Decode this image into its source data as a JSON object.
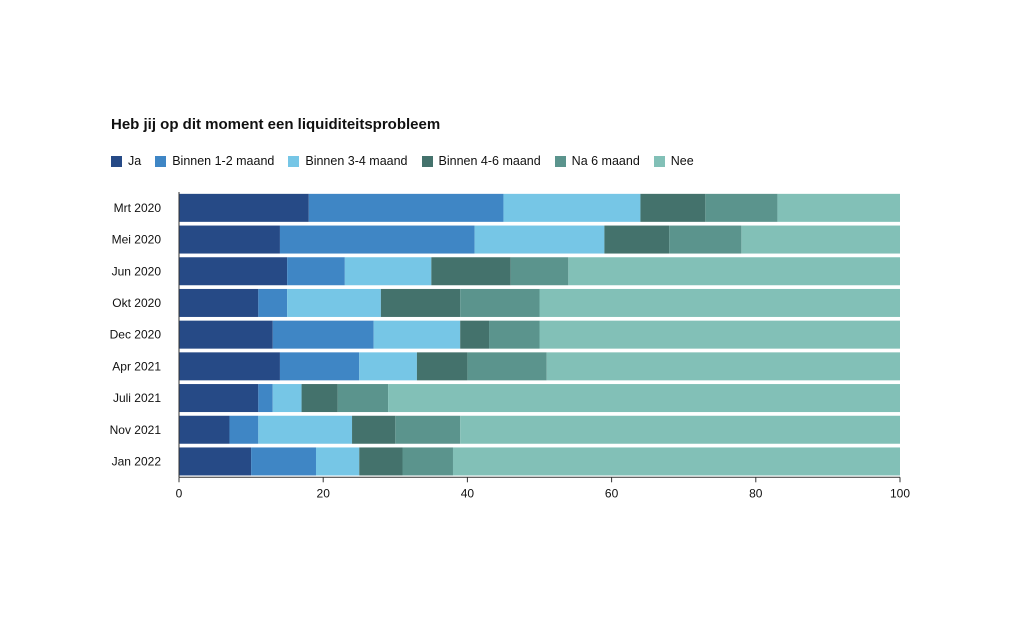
{
  "chart_data": {
    "type": "bar",
    "orientation": "horizontal",
    "stacked": true,
    "title": "Heb jij op dit moment een liquiditeitsprobleem",
    "categories": [
      "Mrt 2020",
      "Mei 2020",
      "Jun 2020",
      "Okt 2020",
      "Dec 2020",
      "Apr 2021",
      "Juli 2021",
      "Nov 2021",
      "Jan 2022"
    ],
    "series": [
      {
        "name": "Ja",
        "color": "#264a86",
        "values": [
          18,
          14,
          15,
          11,
          13,
          14,
          11,
          7,
          10
        ]
      },
      {
        "name": "Binnen 1-2 maand",
        "color": "#3f86c5",
        "values": [
          27,
          27,
          8,
          4,
          14,
          11,
          2,
          4,
          9
        ]
      },
      {
        "name": "Binnen 3-4 maand",
        "color": "#76c6e6",
        "values": [
          19,
          18,
          12,
          13,
          12,
          8,
          4,
          13,
          6
        ]
      },
      {
        "name": "Binnen 4-6 maand",
        "color": "#44726c",
        "values": [
          9,
          9,
          11,
          11,
          4,
          7,
          5,
          6,
          6
        ]
      },
      {
        "name": "Na 6 maand",
        "color": "#5b948d",
        "values": [
          10,
          10,
          8,
          11,
          7,
          11,
          7,
          9,
          7
        ]
      },
      {
        "name": "Nee",
        "color": "#82c0b7",
        "values": [
          17,
          22,
          46,
          50,
          50,
          49,
          71,
          61,
          62
        ]
      }
    ],
    "xlim": [
      0,
      100
    ],
    "xticks": [
      0,
      20,
      40,
      60,
      80,
      100
    ],
    "legend_position": "top-left",
    "grid": false
  }
}
